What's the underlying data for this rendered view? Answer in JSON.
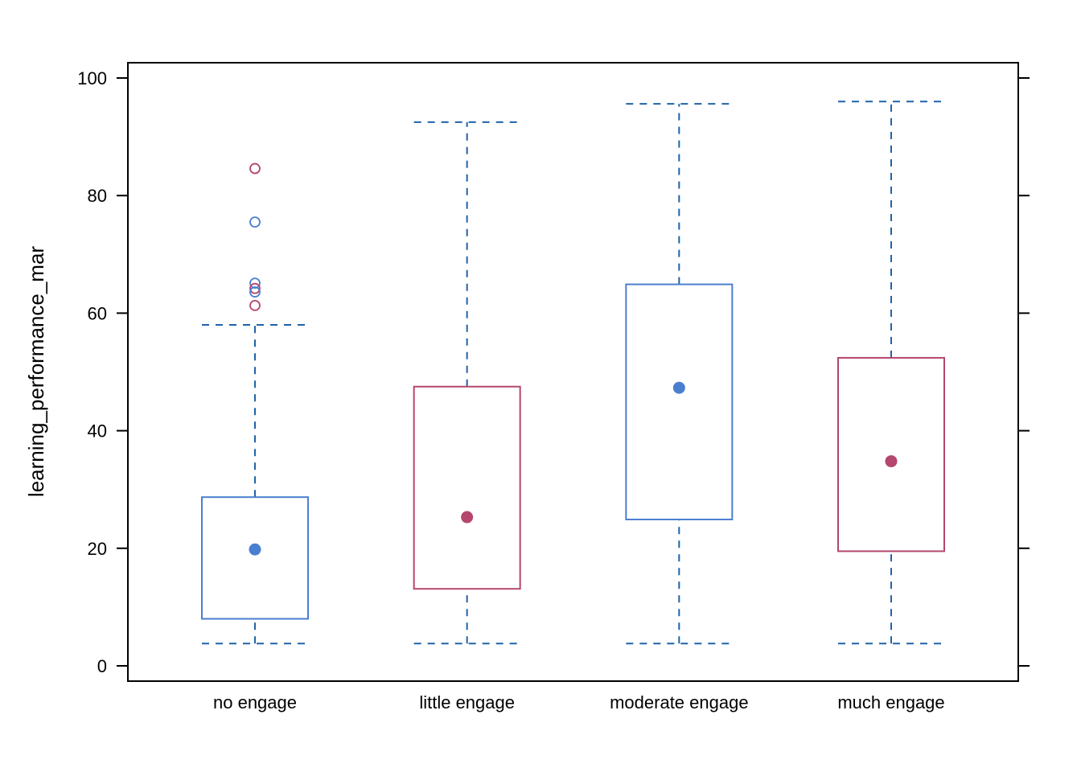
{
  "chart_data": {
    "type": "box",
    "title": "",
    "xlabel": "",
    "ylabel": "learning_performance_mar",
    "ylim": [
      -2.6,
      102.6
    ],
    "yticks": [
      0,
      20,
      40,
      60,
      80,
      100
    ],
    "grid": false,
    "categories": [
      "no engage",
      "little engage",
      "moderate engage",
      "much engage"
    ],
    "boxes": [
      {
        "category": "no engage",
        "color": "#4a7fcf",
        "whisker_low": 3.8,
        "q1": 8.0,
        "median": 19.8,
        "q3": 28.7,
        "whisker_high": 58.0,
        "outliers": [
          {
            "value": 84.6,
            "color": "#b5466e"
          },
          {
            "value": 75.5,
            "color": "#4a7fcf"
          },
          {
            "value": 65.1,
            "color": "#4a7fcf"
          },
          {
            "value": 64.2,
            "color": "#b5466e"
          },
          {
            "value": 63.6,
            "color": "#4a7fcf"
          },
          {
            "value": 61.3,
            "color": "#b5466e"
          }
        ]
      },
      {
        "category": "little engage",
        "color": "#b5466e",
        "whisker_low": 3.8,
        "q1": 13.1,
        "median": 25.3,
        "q3": 47.5,
        "whisker_high": 92.5,
        "outliers": []
      },
      {
        "category": "moderate engage",
        "color": "#4a7fcf",
        "whisker_low": 3.8,
        "q1": 24.9,
        "median": 47.3,
        "q3": 64.9,
        "whisker_high": 95.6,
        "outliers": []
      },
      {
        "category": "much engage",
        "color": "#b5466e",
        "whisker_low": 3.8,
        "q1": 19.5,
        "median": 34.8,
        "q3": 52.4,
        "whisker_high": 96.0,
        "outliers": []
      }
    ],
    "whisker_color": "#1f63a8"
  }
}
